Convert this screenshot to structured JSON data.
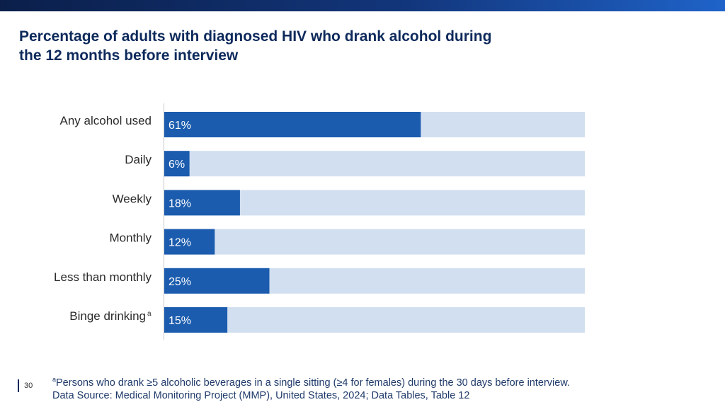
{
  "title": "Percentage of adults with diagnosed HIV who drank alcohol during the 12 months before interview",
  "page_number": "30",
  "footnote": {
    "marker": "a",
    "text": "Persons who drank ≥5 alcoholic beverages in a single sitting (≥4 for females) during the 30 days before interview.",
    "source": "Data Source: Medical Monitoring Project (MMP), United States, 2024; Data Tables, Table 12"
  },
  "colors": {
    "bar": "#1b5cae",
    "track": "#d2dff0",
    "axis": "#c8c8c8"
  },
  "chart_data": {
    "type": "bar",
    "orientation": "horizontal",
    "categories": [
      "Any alcohol used",
      "Daily",
      "Weekly",
      "Monthly",
      "Less than monthly",
      "Binge drinking"
    ],
    "category_superscripts": [
      "",
      "",
      "",
      "",
      "",
      "a"
    ],
    "values": [
      61,
      6,
      18,
      12,
      25,
      15
    ],
    "value_labels": [
      "61%",
      "6%",
      "18%",
      "12%",
      "25%",
      "15%"
    ],
    "xlim": [
      0,
      100
    ],
    "grid": false,
    "legend": "none"
  }
}
